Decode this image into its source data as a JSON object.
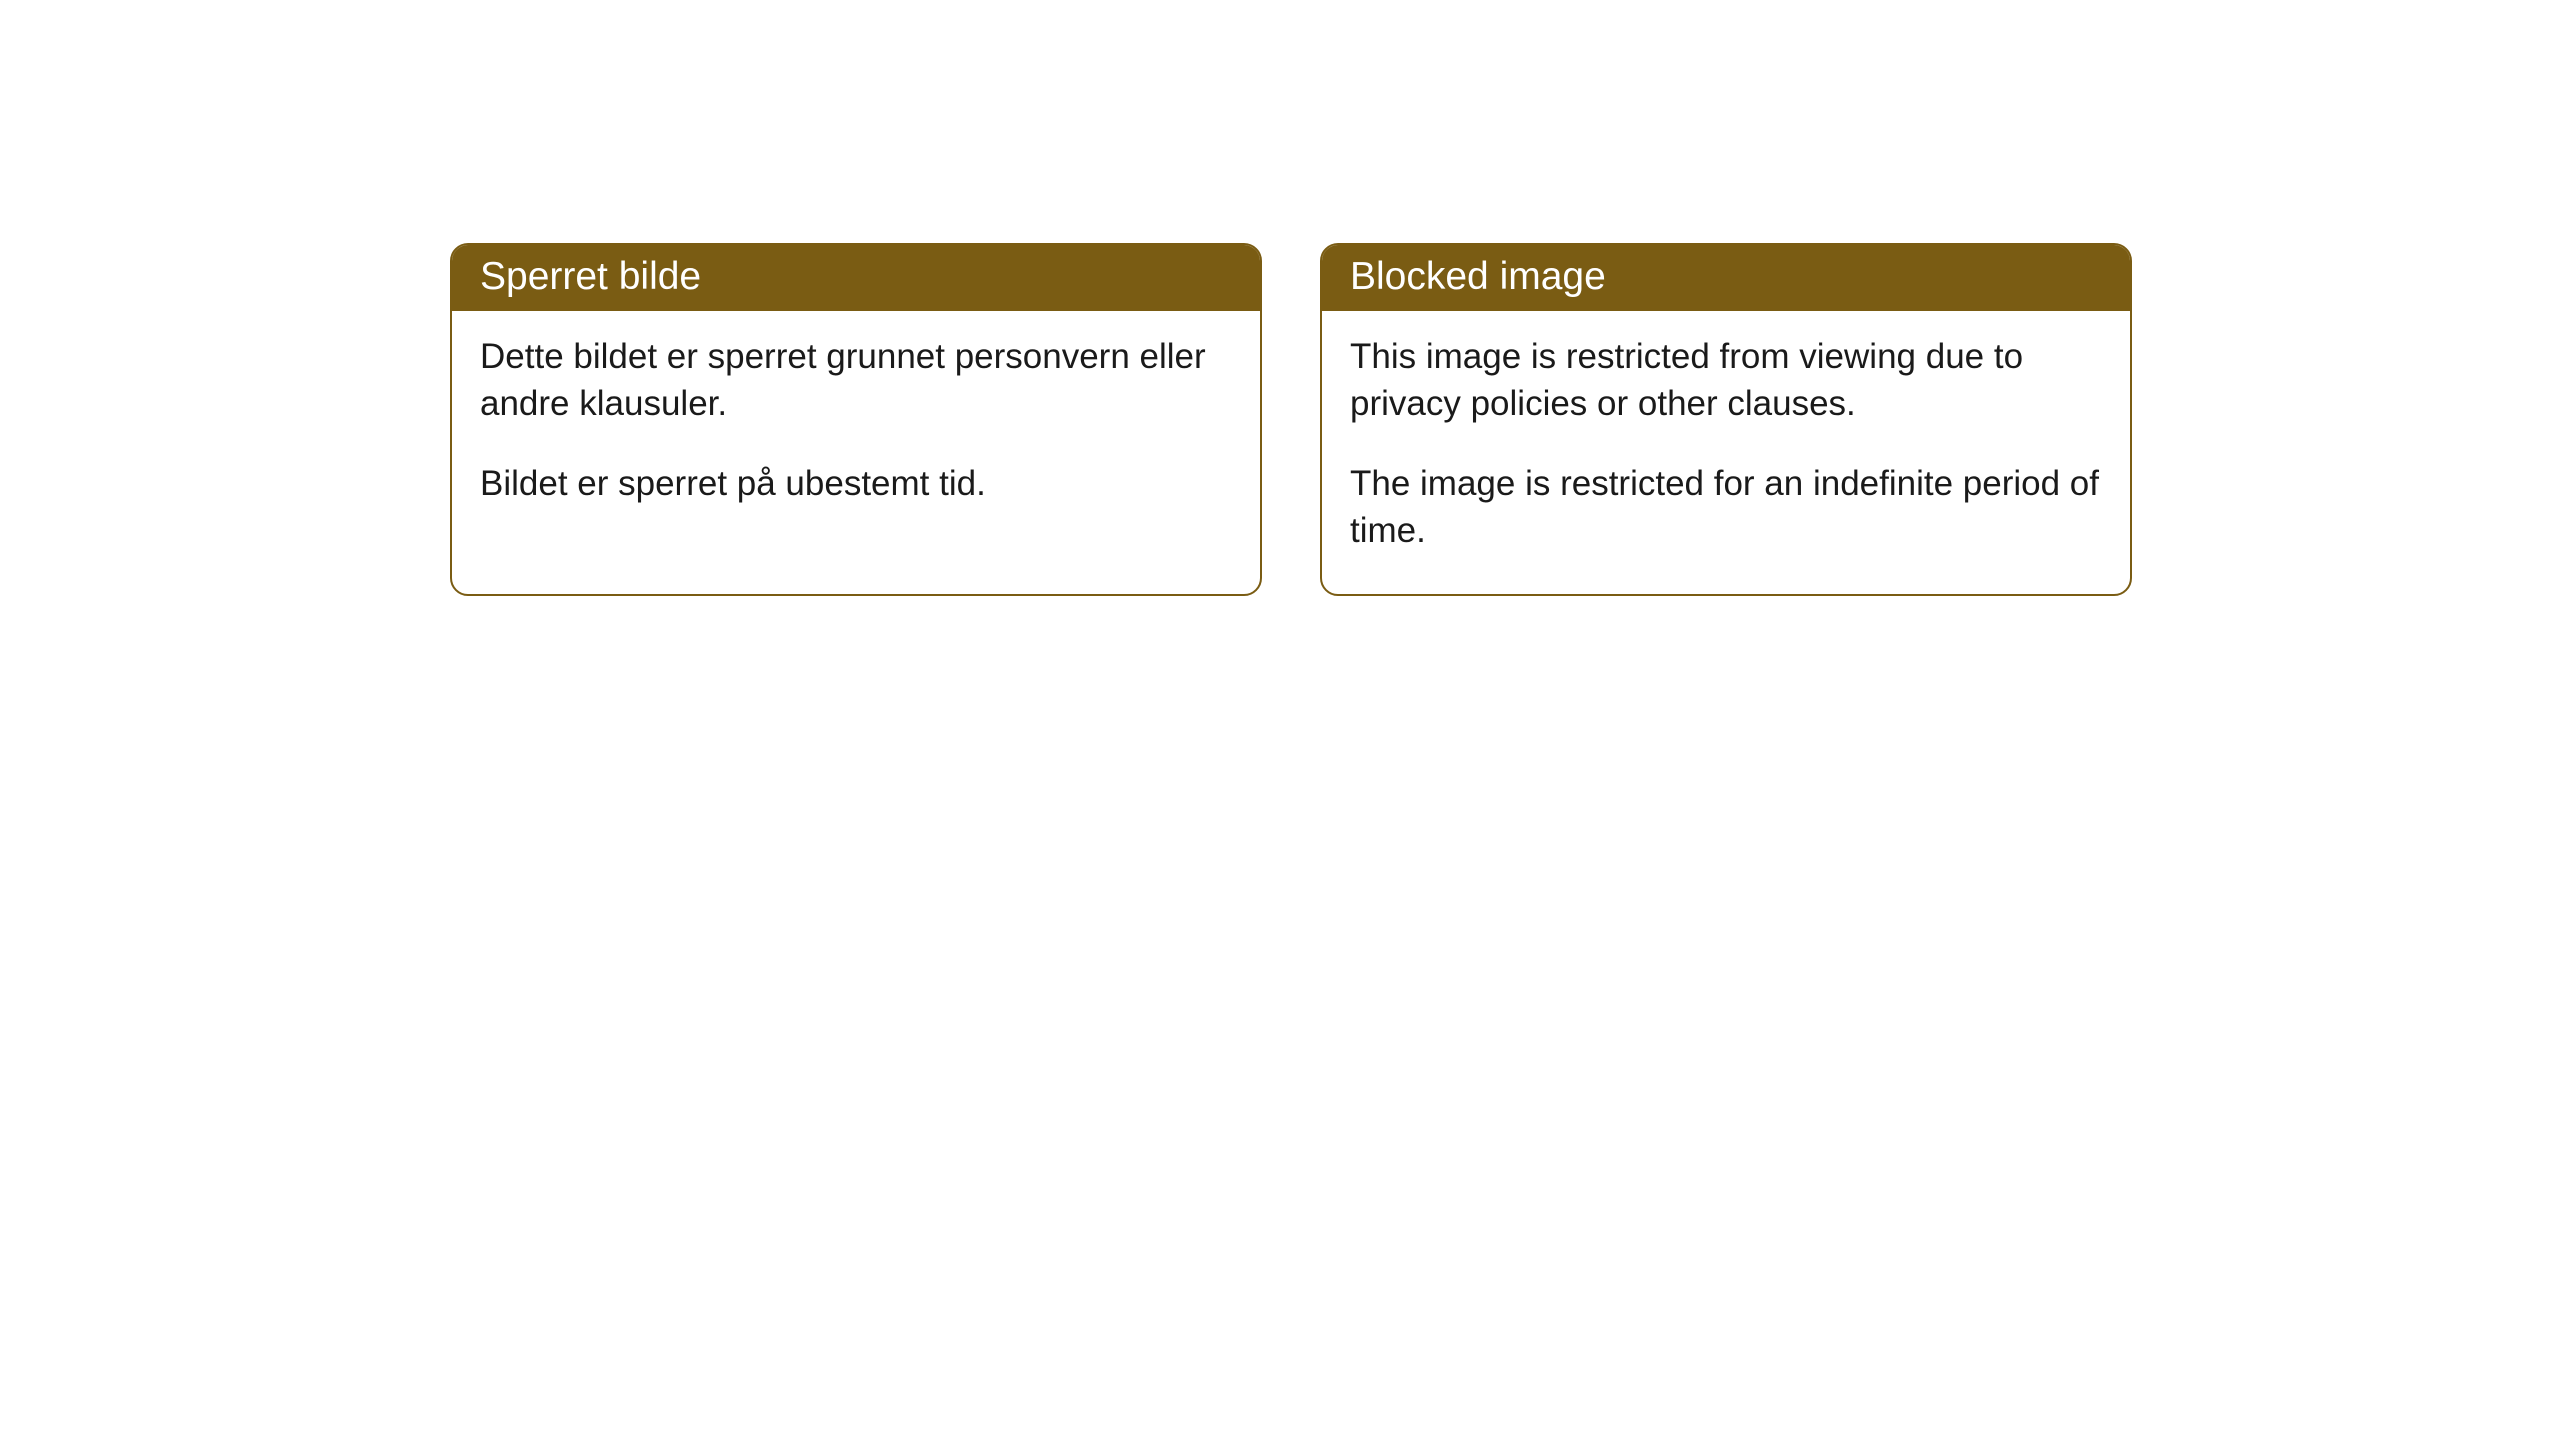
{
  "cards": [
    {
      "title": "Sperret bilde",
      "paragraph1": "Dette bildet er sperret grunnet personvern eller andre klausuler.",
      "paragraph2": "Bildet er sperret på ubestemt tid."
    },
    {
      "title": "Blocked image",
      "paragraph1": "This image is restricted from viewing due to privacy policies or other clauses.",
      "paragraph2": "The image is restricted for an indefinite period of time."
    }
  ],
  "styling": {
    "header_bg_color": "#7a5c13",
    "header_text_color": "#ffffff",
    "body_text_color": "#1a1a1a",
    "border_color": "#7a5c13",
    "background_color": "#ffffff",
    "border_radius": 18,
    "header_fontsize": 39,
    "body_fontsize": 35
  }
}
